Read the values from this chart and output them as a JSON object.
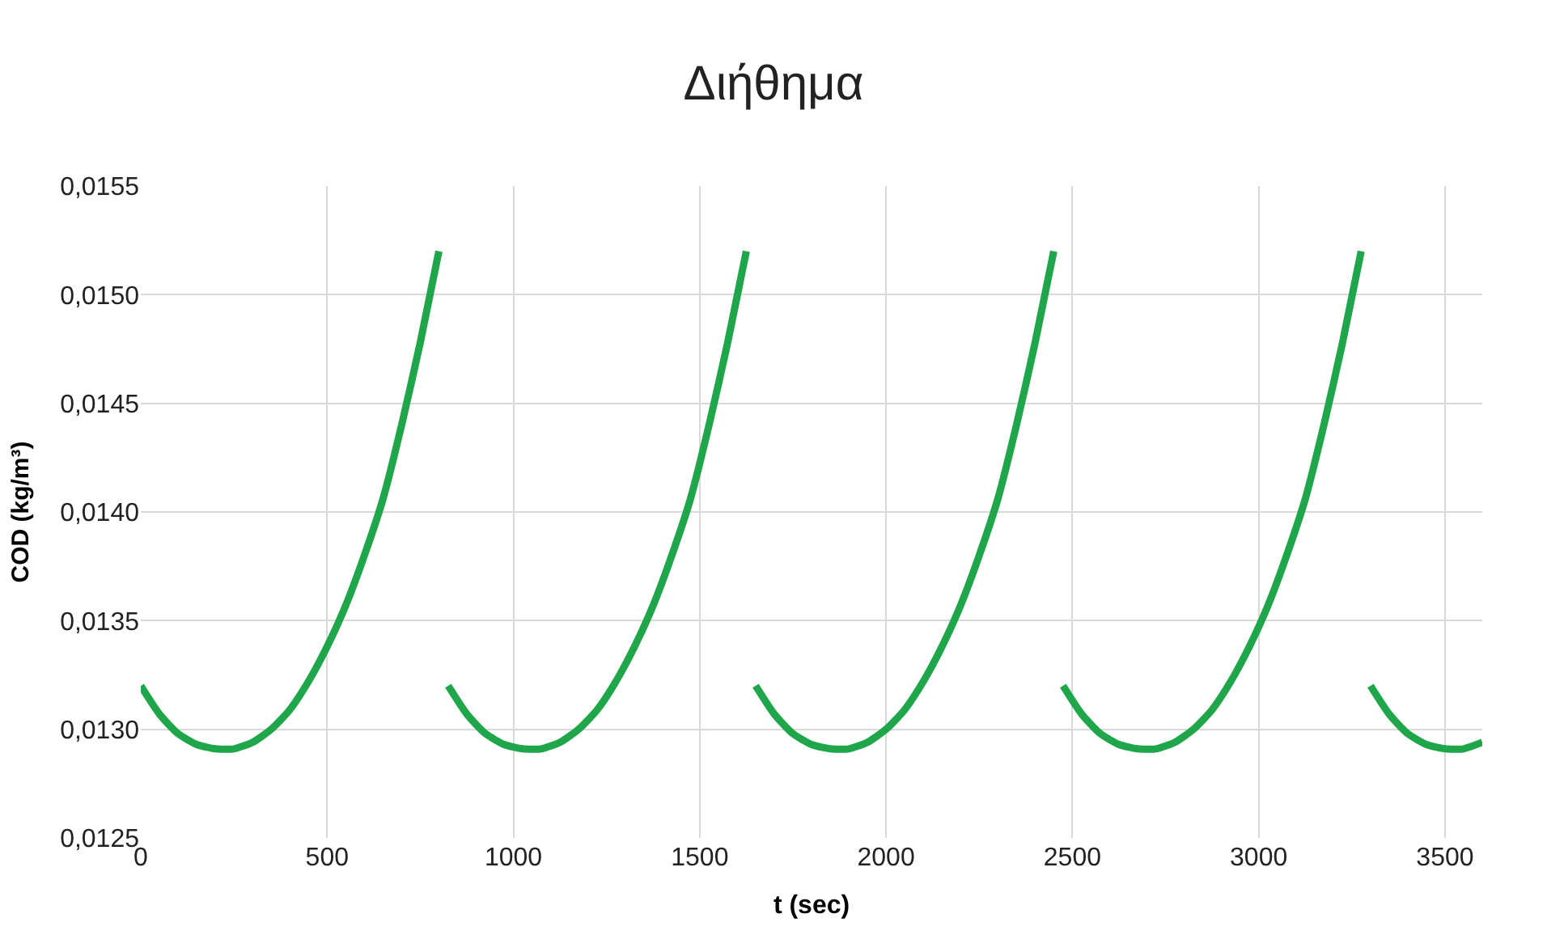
{
  "chart_data": {
    "type": "line",
    "title": "Διήθημα",
    "xlabel": "t (sec)",
    "ylabel": "COD (kg/m³)",
    "x": [
      0,
      50,
      100,
      150,
      200,
      250,
      300,
      350,
      400,
      450,
      500,
      550,
      600,
      650,
      700,
      750,
      800,
      812,
      825,
      875,
      925,
      975,
      1025,
      1075,
      1125,
      1175,
      1225,
      1275,
      1325,
      1375,
      1425,
      1475,
      1525,
      1575,
      1625,
      1637,
      1650,
      1700,
      1750,
      1800,
      1850,
      1900,
      1950,
      2000,
      2050,
      2100,
      2150,
      2200,
      2250,
      2300,
      2350,
      2400,
      2450,
      2462,
      2475,
      2525,
      2575,
      2625,
      2675,
      2725,
      2775,
      2825,
      2875,
      2925,
      2975,
      3025,
      3075,
      3125,
      3175,
      3225,
      3275,
      3287,
      3300,
      3350,
      3400,
      3450,
      3500,
      3550,
      3600
    ],
    "series": [
      {
        "color": "#1fa64a",
        "values": [
          0.0132,
          0.01307,
          0.01298,
          0.01293,
          0.01291,
          0.01291,
          0.01294,
          0.013,
          0.01309,
          0.01322,
          0.01338,
          0.01357,
          0.0138,
          0.01406,
          0.0144,
          0.01478,
          0.0152,
          null,
          0.0132,
          0.01307,
          0.01298,
          0.01293,
          0.01291,
          0.01291,
          0.01294,
          0.013,
          0.01309,
          0.01322,
          0.01338,
          0.01357,
          0.0138,
          0.01406,
          0.0144,
          0.01478,
          0.0152,
          null,
          0.0132,
          0.01307,
          0.01298,
          0.01293,
          0.01291,
          0.01291,
          0.01294,
          0.013,
          0.01309,
          0.01322,
          0.01338,
          0.01357,
          0.0138,
          0.01406,
          0.0144,
          0.01478,
          0.0152,
          null,
          0.0132,
          0.01307,
          0.01298,
          0.01293,
          0.01291,
          0.01291,
          0.01294,
          0.013,
          0.01309,
          0.01322,
          0.01338,
          0.01357,
          0.0138,
          0.01406,
          0.0144,
          0.01478,
          0.0152,
          null,
          0.0132,
          0.01307,
          0.01298,
          0.01293,
          0.01291,
          0.01291,
          0.01294
        ]
      }
    ],
    "xlim": [
      0,
      3600
    ],
    "xticks": [
      0,
      500,
      1000,
      1500,
      2000,
      2500,
      3000,
      3500
    ],
    "ylim": [
      0.0125,
      0.0155
    ],
    "yticks": [
      {
        "value": 0.0125,
        "label": "0,0125"
      },
      {
        "value": 0.013,
        "label": "0,0130"
      },
      {
        "value": 0.0135,
        "label": "0,0135"
      },
      {
        "value": 0.014,
        "label": "0,0140"
      },
      {
        "value": 0.0145,
        "label": "0,0145"
      },
      {
        "value": 0.015,
        "label": "0,0150"
      },
      {
        "value": 0.0155,
        "label": "0,0155"
      }
    ],
    "grid": true,
    "marker": "none",
    "line_style": "solid"
  }
}
